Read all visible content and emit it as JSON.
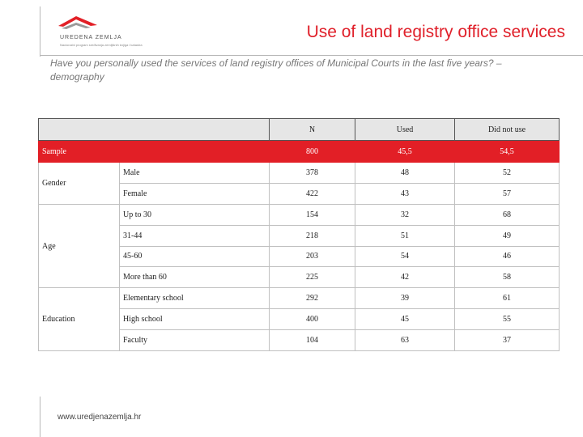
{
  "header": {
    "logo_text": "UREDENA ZEMLJA",
    "logo_subtext": "Nacionalni program sređivanja zemljišnih knjiga i katastra",
    "title": "Use of land registry office services",
    "subtitle": "Have you personally used the services of land registry offices of Municipal Courts in the last five years? – demography"
  },
  "table": {
    "columns": [
      "N",
      "Used",
      "Did not use"
    ],
    "sample": {
      "label": "Sample",
      "n": "800",
      "used": "45,5",
      "did_not_use": "54,5"
    },
    "groups": [
      {
        "label": "Gender",
        "rows": [
          {
            "label": "Male",
            "n": "378",
            "used": "48",
            "did_not_use": "52"
          },
          {
            "label": "Female",
            "n": "422",
            "used": "43",
            "did_not_use": "57"
          }
        ]
      },
      {
        "label": "Age",
        "rows": [
          {
            "label": "Up to 30",
            "n": "154",
            "used": "32",
            "did_not_use": "68"
          },
          {
            "label": "31-44",
            "n": "218",
            "used": "51",
            "did_not_use": "49"
          },
          {
            "label": "45-60",
            "n": "203",
            "used": "54",
            "did_not_use": "46"
          },
          {
            "label": "More than 60",
            "n": "225",
            "used": "42",
            "did_not_use": "58"
          }
        ]
      },
      {
        "label": "Education",
        "rows": [
          {
            "label": "Elementary school",
            "n": "292",
            "used": "39",
            "did_not_use": "61"
          },
          {
            "label": "High school",
            "n": "400",
            "used": "45",
            "did_not_use": "55"
          },
          {
            "label": "Faculty",
            "n": "104",
            "used": "63",
            "did_not_use": "37"
          }
        ]
      }
    ]
  },
  "footer": {
    "url": "www.uredjenazemlja.hr"
  },
  "colors": {
    "accent": "#e21f26",
    "title": "#e0202a",
    "header_bg": "#e6e6e6"
  },
  "icons": {
    "logo": "uredena-zemlja-logo-icon"
  }
}
